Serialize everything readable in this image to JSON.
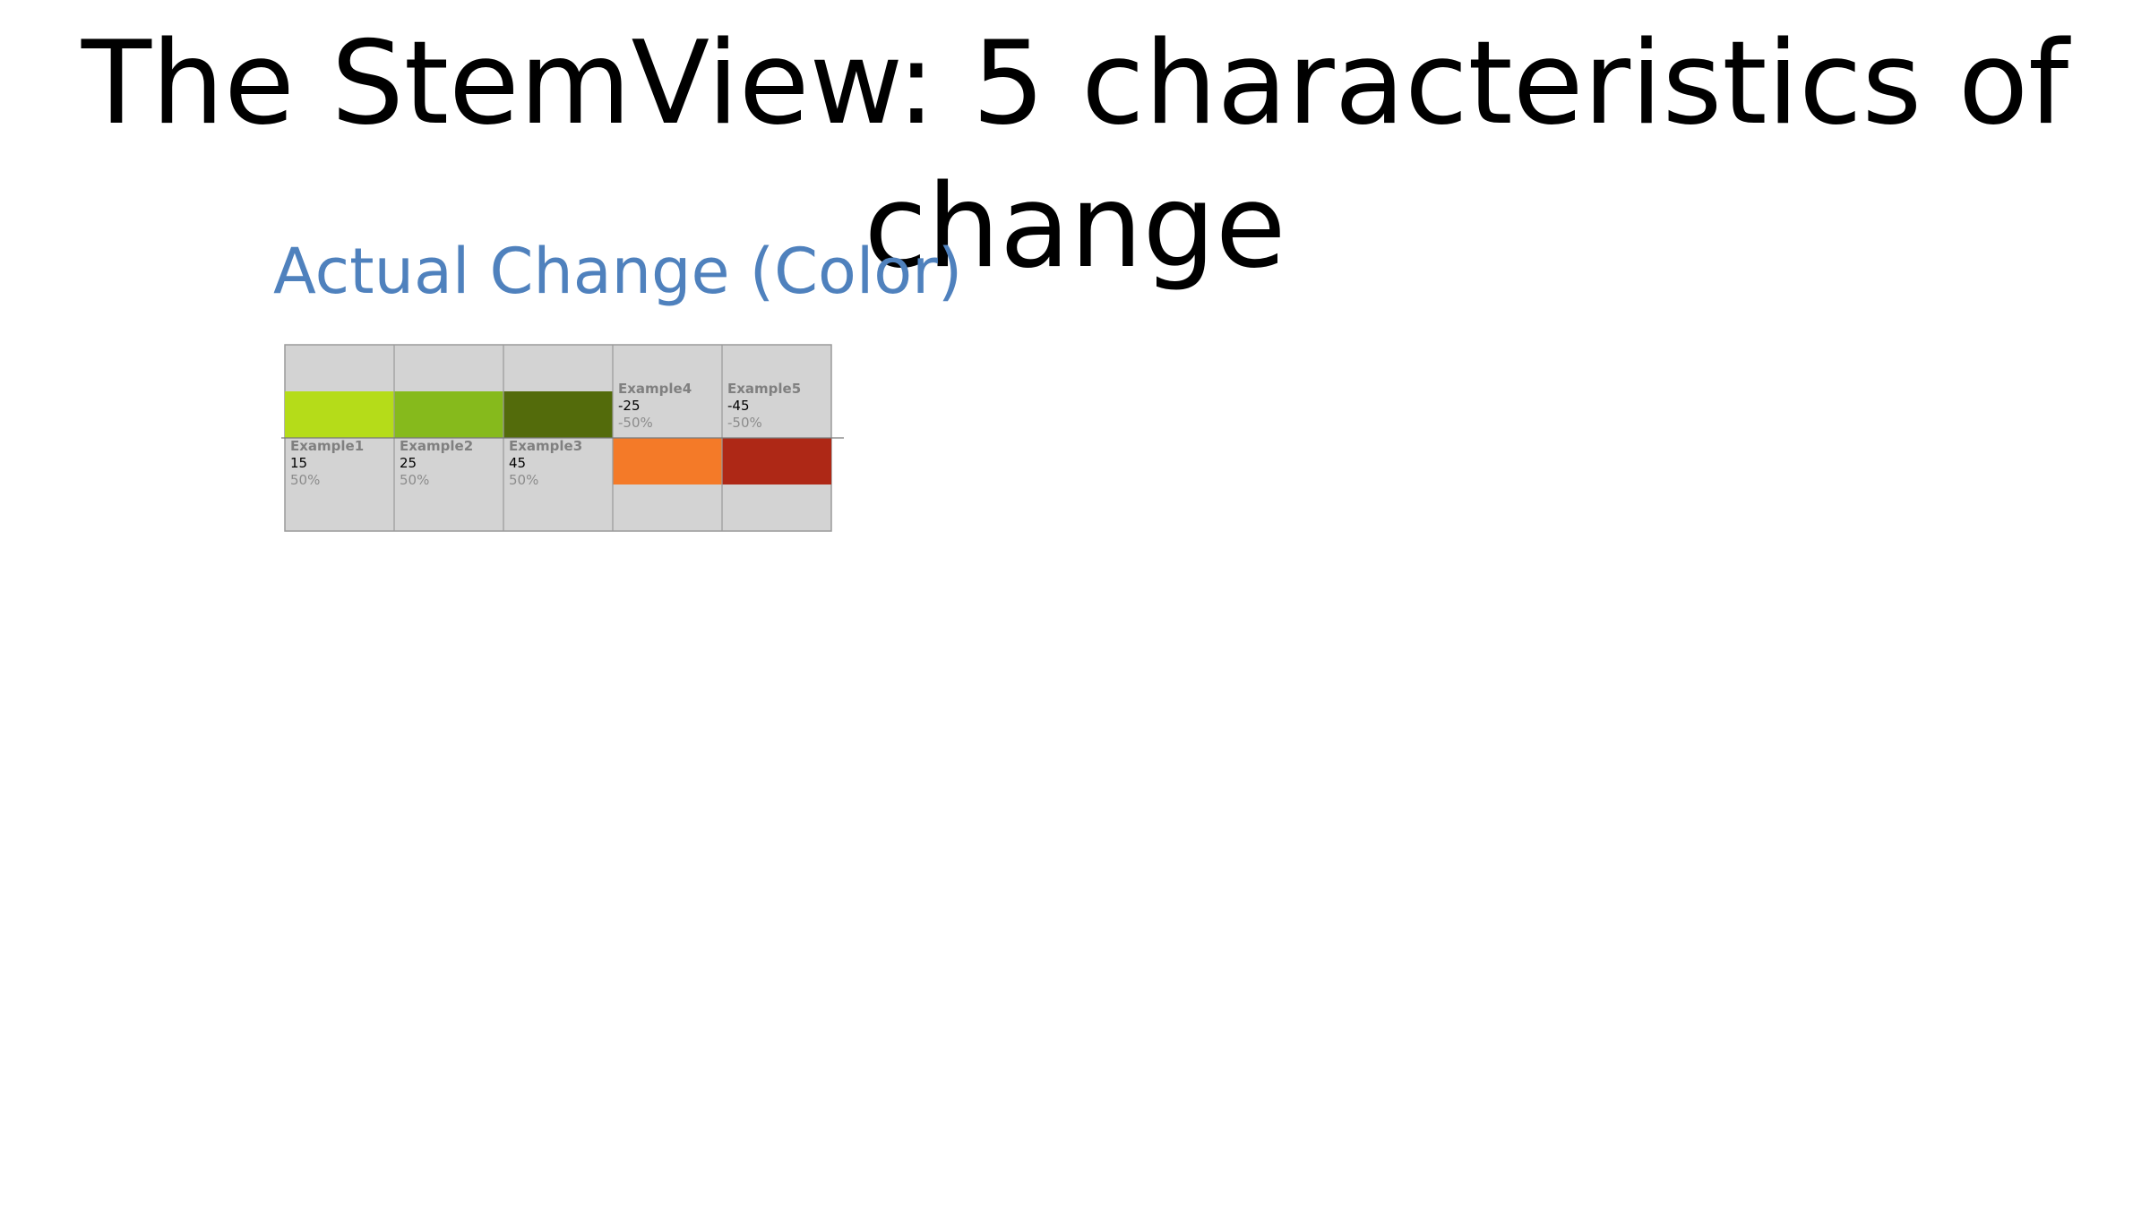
{
  "slide": {
    "title": "The StemView: 5 characteristics of change",
    "heading": "Actual Change (Color)"
  },
  "chart_data": {
    "type": "bar",
    "title": "Actual Change (Color)",
    "categories": [
      "Example1",
      "Example2",
      "Example3",
      "Example4",
      "Example5"
    ],
    "values": [
      15,
      25,
      45,
      -25,
      -45
    ],
    "percent_labels": [
      "50%",
      "50%",
      "50%",
      "-50%",
      "-50%"
    ],
    "percents": [
      50,
      50,
      50,
      -50,
      -50
    ],
    "colors": [
      "#b5dc19",
      "#86ba1c",
      "#536b0b",
      "#f47a28",
      "#ae2816"
    ],
    "background_color": "#d3d3d3",
    "label_name_color": "#808080",
    "label_value_color": "#000000",
    "label_percent_color": "#8c8c8c",
    "ylim": [
      -100,
      100
    ],
    "grid": false,
    "legend": "none"
  }
}
